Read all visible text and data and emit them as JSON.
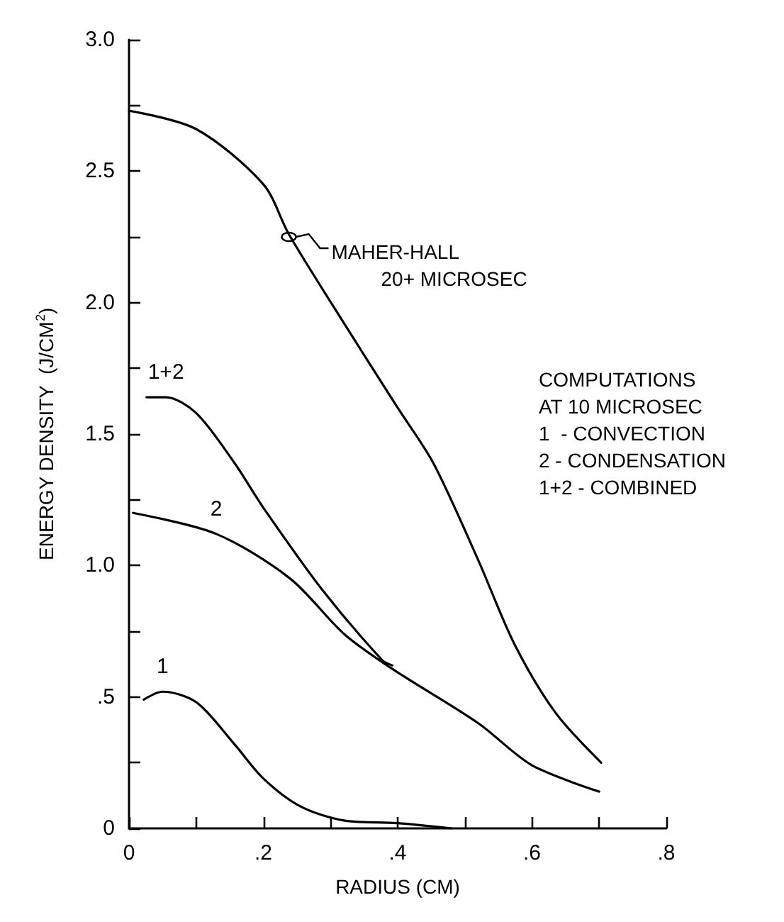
{
  "chart_data": {
    "type": "line",
    "xlabel": "RADIUS (CM)",
    "ylabel": "ENERGY DENSITY  (J/CM$^{2}$)",
    "xlim": [
      0,
      0.8
    ],
    "ylim": [
      0,
      3.0
    ],
    "xticks": [
      0,
      {
        "value": 0.1,
        "label": null
      },
      {
        "value": 0.2,
        "label": ".2"
      },
      {
        "value": 0.3,
        "label": null
      },
      {
        "value": 0.4,
        "label": ".4"
      },
      {
        "value": 0.5,
        "label": null
      },
      {
        "value": 0.6,
        "label": ".6"
      },
      {
        "value": 0.7,
        "label": null
      },
      {
        "value": 0.8,
        "label": ".8"
      }
    ],
    "yticks": [
      0,
      {
        "value": 0.25,
        "label": null
      },
      {
        "value": 0.5,
        "label": ".5"
      },
      {
        "value": 0.75,
        "label": null
      },
      {
        "value": 1.0,
        "label": "1.0"
      },
      {
        "value": 1.25,
        "label": null
      },
      {
        "value": 1.5,
        "label": "1.5"
      },
      {
        "value": 1.75,
        "label": null
      },
      {
        "value": 2.0,
        "label": "2.0"
      },
      {
        "value": 2.25,
        "label": null
      },
      {
        "value": 2.5,
        "label": "2.5"
      },
      {
        "value": 2.75,
        "label": null
      },
      {
        "value": 3.0,
        "label": "3.0"
      }
    ],
    "grid": false,
    "legend": false,
    "marker": "none",
    "line_style": "solid",
    "series": [
      {
        "color": "#000000",
        "x": [
          0,
          0.1,
          0.2,
          0.238,
          0.318,
          0.4,
          0.453,
          0.52,
          0.574,
          0.635,
          0.703
        ],
        "values": [
          2.73,
          2.66,
          2.45,
          2.26,
          1.93,
          1.6,
          1.39,
          1.02,
          0.7,
          0.44,
          0.25
        ]
      },
      {
        "name": "1+2",
        "color": "#000000",
        "x": [
          0.026,
          0.055,
          0.1,
          0.157,
          0.2,
          0.287,
          0.377,
          0.392
        ],
        "values": [
          1.64,
          1.64,
          1.58,
          1.39,
          1.22,
          0.91,
          0.64,
          0.62
        ]
      },
      {
        "name": "2",
        "color": "#000000",
        "x": [
          0.006,
          0.13,
          0.24,
          0.32,
          0.39,
          0.52,
          0.6,
          0.7
        ],
        "values": [
          1.2,
          1.12,
          0.95,
          0.74,
          0.61,
          0.4,
          0.24,
          0.14
        ]
      },
      {
        "name": "1",
        "color": "#000000",
        "x": [
          0.022,
          0.05,
          0.1,
          0.157,
          0.2,
          0.255,
          0.32,
          0.4,
          0.48
        ],
        "values": [
          0.49,
          0.52,
          0.48,
          0.32,
          0.19,
          0.084,
          0.03,
          0.02,
          0
        ]
      }
    ],
    "annotations": [
      {
        "text": "MAHER-HALL\n         20+ MICROSEC",
        "x": 0.238,
        "y": 2.25
      },
      "COMPUTATIONS\nAT 10 MICROSEC\n1  - CONVECTION\n2 - CONDENSATION\n1+2 - COMBINED"
    ]
  }
}
